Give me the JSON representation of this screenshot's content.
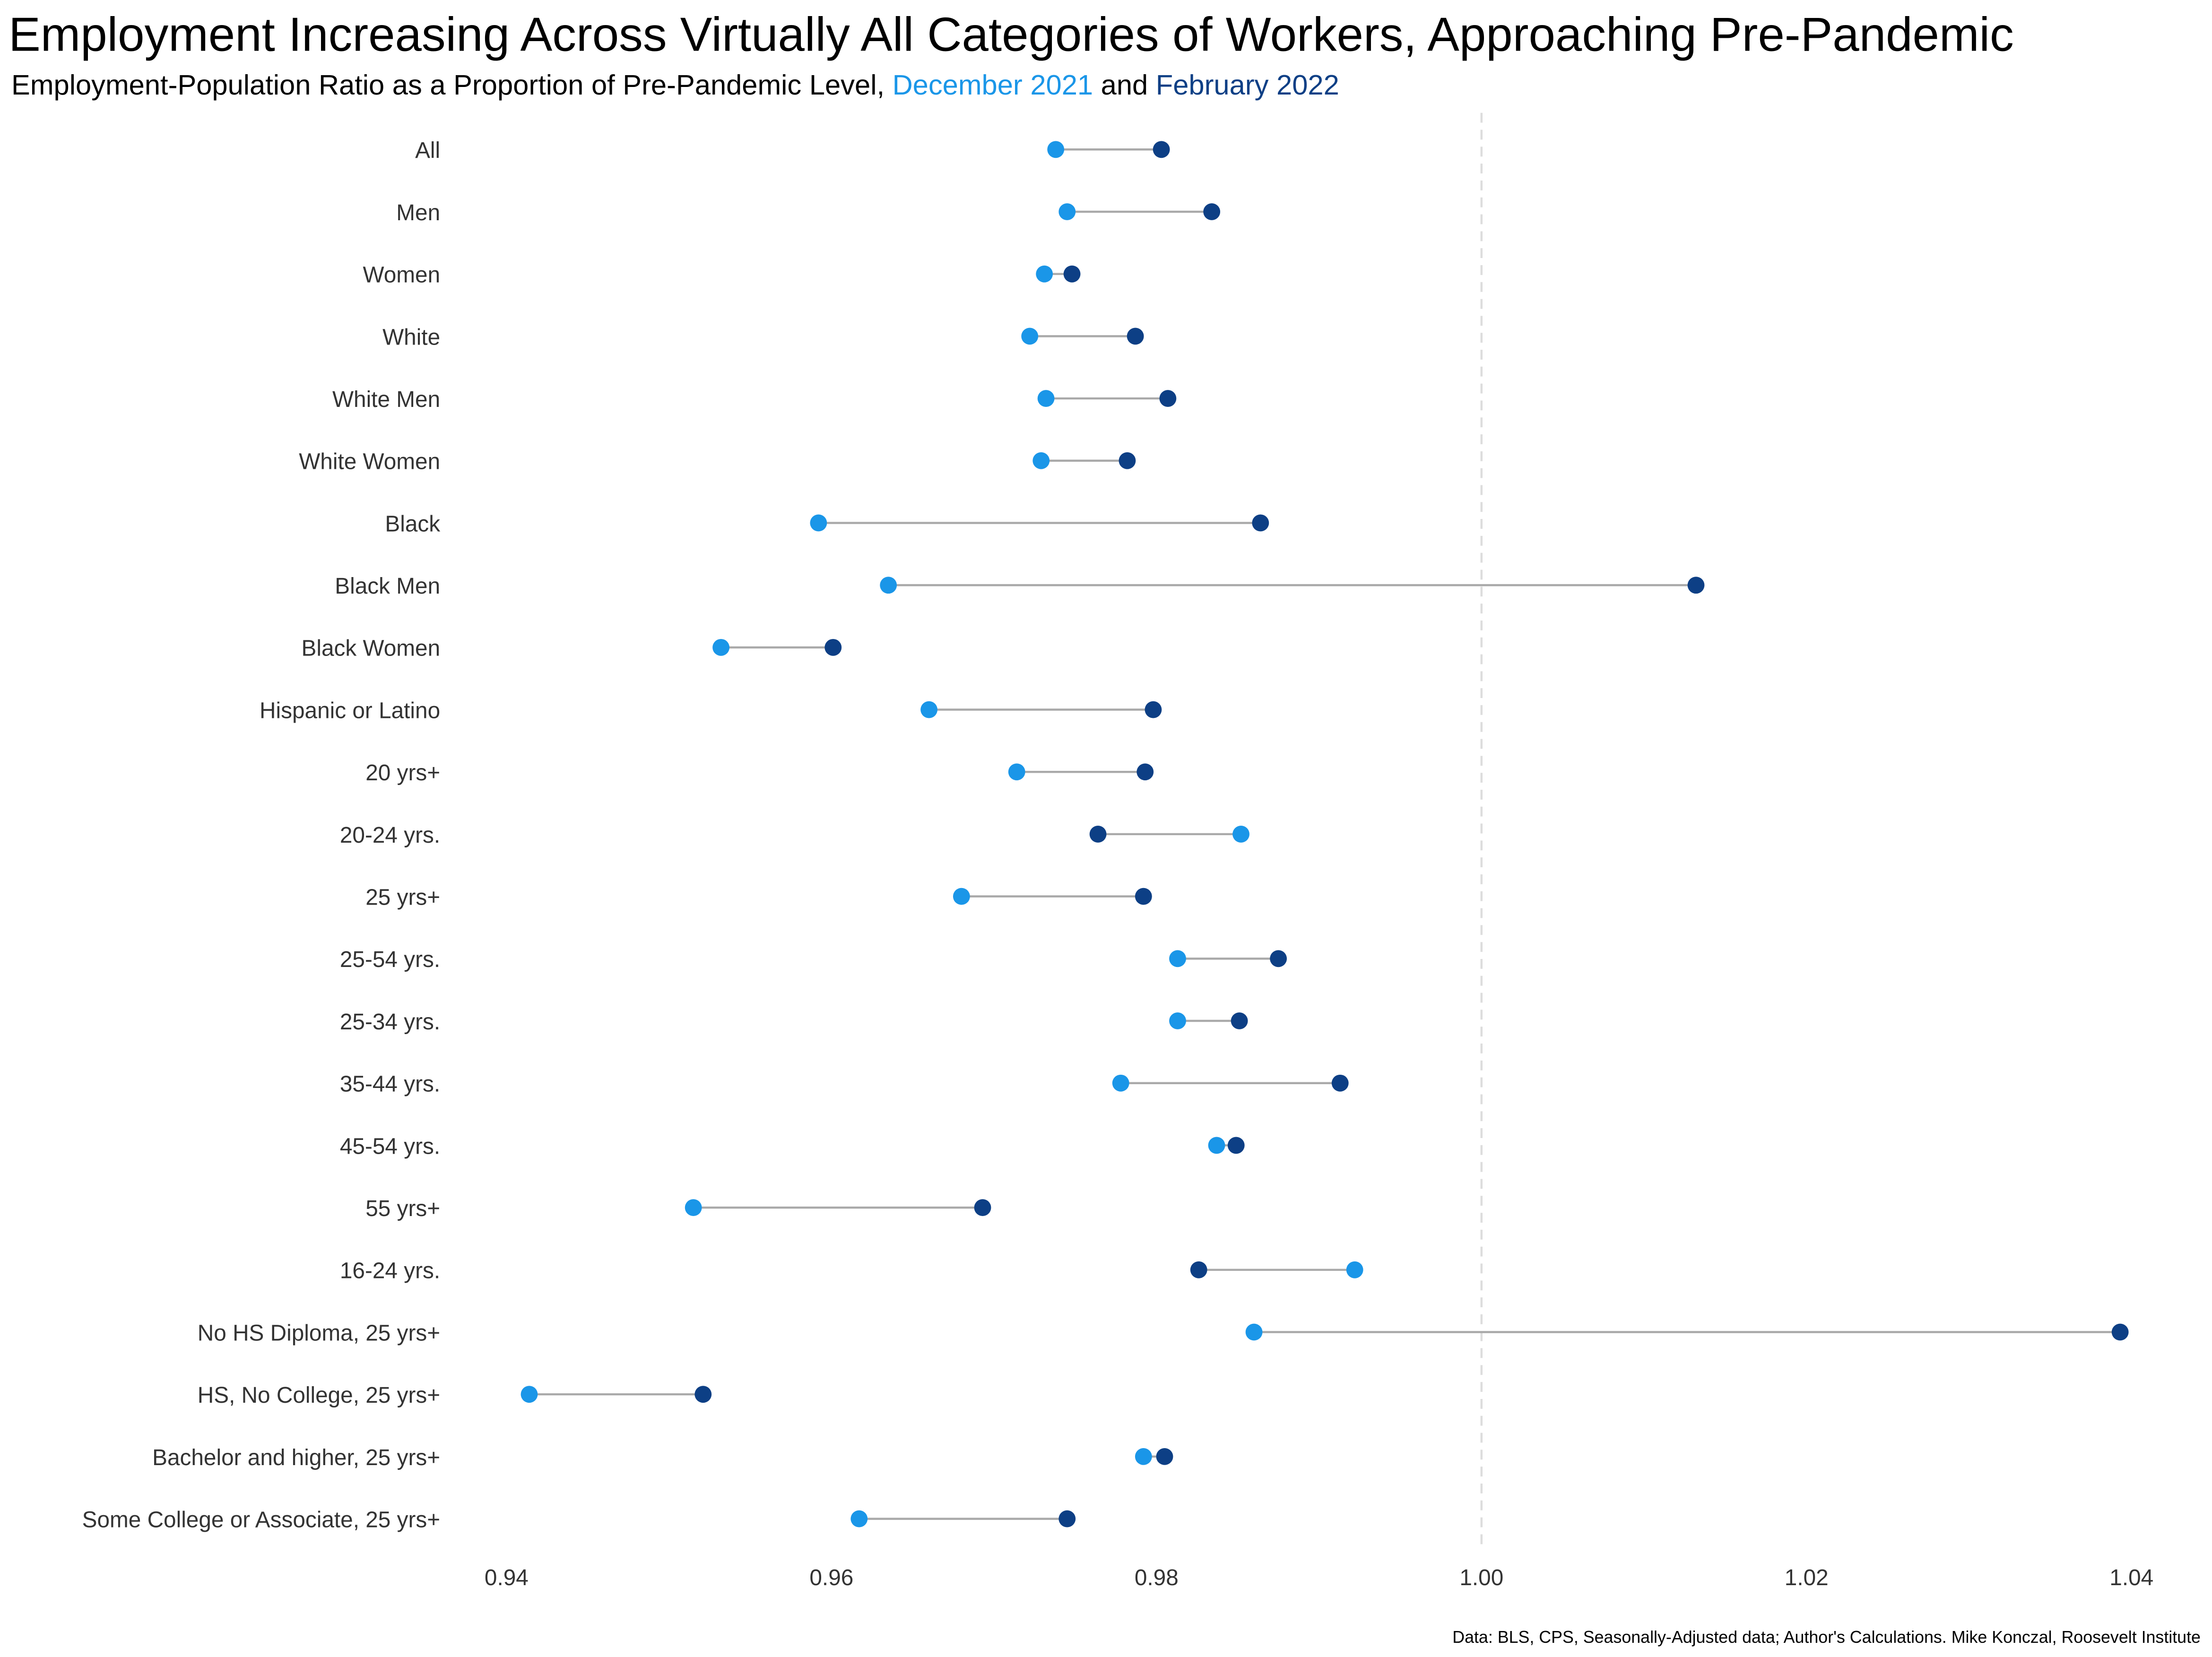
{
  "chart_data": {
    "type": "dumbbell",
    "title": "Employment Increasing Across Virtually All Categories of Workers, Approaching Pre-Pandemic",
    "subtitle": "Employment-Population Ratio as a Proportion of Pre-Pandemic Level,",
    "subtitle_joiner": "and",
    "caption": "Data: BLS, CPS, Seasonally-Adjusted data; Author's Calculations. Mike Konczal, Roosevelt Institute",
    "categories": [
      "All",
      "Men",
      "Women",
      "White",
      "White Men",
      "White Women",
      "Black",
      "Black Men",
      "Black Women",
      "Hispanic or Latino",
      "20 yrs+",
      "20-24 yrs.",
      "25 yrs+",
      "25-54 yrs.",
      "25-34 yrs.",
      "35-44 yrs.",
      "45-54 yrs.",
      "55 yrs+",
      "16-24 yrs.",
      "No HS Diploma, 25 yrs+",
      "HS, No College, 25 yrs+",
      "Bachelor and higher, 25 yrs+",
      "Some College or Associate, 25 yrs+"
    ],
    "series": [
      {
        "name": "December 2021",
        "color": "#1a96e8",
        "values": [
          0.9738,
          0.9745,
          0.9731,
          0.9722,
          0.9732,
          0.9729,
          0.9592,
          0.9635,
          0.9532,
          0.966,
          0.9714,
          0.9852,
          0.968,
          0.9813,
          0.9813,
          0.9778,
          0.9837,
          0.9515,
          0.9922,
          0.986,
          0.9414,
          0.9792,
          0.9617
        ]
      },
      {
        "name": "February 2022",
        "color": "#0d3f85",
        "values": [
          0.9803,
          0.9834,
          0.9748,
          0.9787,
          0.9807,
          0.9782,
          0.9864,
          1.0132,
          0.9601,
          0.9798,
          0.9793,
          0.9764,
          0.9792,
          0.9875,
          0.9851,
          0.9913,
          0.9849,
          0.9693,
          0.9826,
          1.0393,
          0.9521,
          0.9805,
          0.9745
        ]
      }
    ],
    "xlim": [
      0.94,
      1.04
    ],
    "xticks": [
      {
        "value": 0.94,
        "label": "0.94"
      },
      {
        "value": 0.96,
        "label": "0.96"
      },
      {
        "value": 0.98,
        "label": "0.98"
      },
      {
        "value": 1.0,
        "label": "1.00"
      },
      {
        "value": 1.02,
        "label": "1.02"
      },
      {
        "value": 1.04,
        "label": "1.04"
      }
    ],
    "reference_line": 1,
    "connector_color": "#a9a9a9"
  }
}
